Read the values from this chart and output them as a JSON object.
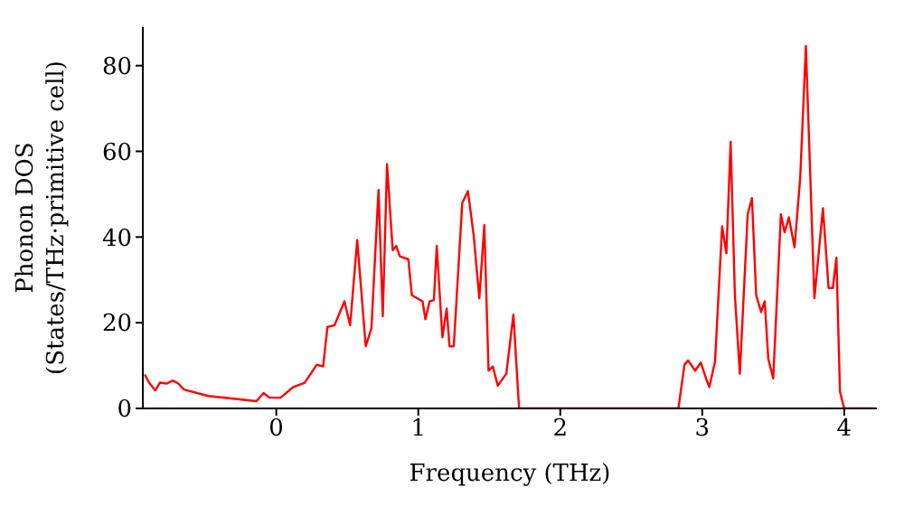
{
  "chart_data": {
    "type": "line",
    "xlabel": "Frequency (THz)",
    "ylabel": "Phonon DOS\n(States/THz·primitive cell)",
    "x": [
      -0.926,
      -0.896,
      -0.853,
      -0.82,
      -0.77,
      -0.73,
      -0.69,
      -0.65,
      -0.48,
      -0.14,
      -0.09,
      -0.047,
      0.03,
      0.12,
      0.2,
      0.285,
      0.33,
      0.36,
      0.41,
      0.48,
      0.52,
      0.57,
      0.63,
      0.67,
      0.72,
      0.75,
      0.78,
      0.82,
      0.845,
      0.87,
      0.93,
      0.955,
      1.03,
      1.05,
      1.08,
      1.11,
      1.13,
      1.17,
      1.2,
      1.22,
      1.25,
      1.31,
      1.35,
      1.39,
      1.43,
      1.465,
      1.495,
      1.525,
      1.56,
      1.62,
      1.67,
      1.71,
      2.832,
      2.875,
      2.9,
      2.95,
      2.99,
      3.03,
      3.05,
      3.09,
      3.14,
      3.17,
      3.2,
      3.23,
      3.265,
      3.32,
      3.35,
      3.38,
      3.415,
      3.44,
      3.465,
      3.5,
      3.554,
      3.58,
      3.61,
      3.65,
      3.69,
      3.73,
      3.79,
      3.85,
      3.89,
      3.92,
      3.945,
      3.97,
      4.0,
      4.21
    ],
    "series": [
      {
        "color": "#ff0000",
        "values": [
          7.9,
          6.0,
          4.2,
          6.0,
          5.8,
          6.5,
          5.8,
          4.4,
          2.9,
          1.7,
          3.6,
          2.5,
          2.5,
          5,
          6,
          10.2,
          9.8,
          19,
          19.4,
          25,
          19.4,
          39.3,
          14.5,
          18.7,
          51,
          21.5,
          57,
          36.9,
          37.9,
          35.5,
          34.8,
          26.4,
          25,
          20.8,
          25,
          25.3,
          37.9,
          16.6,
          23.3,
          14.5,
          14.5,
          48,
          50.7,
          40.4,
          25.7,
          42.8,
          8.8,
          9.8,
          5.3,
          8.1,
          21.9,
          0,
          0,
          10.2,
          11.2,
          8.8,
          10.7,
          6.7,
          5,
          10.9,
          42.5,
          36.2,
          62.2,
          26.4,
          8.1,
          45.3,
          49.1,
          26.4,
          22.5,
          25,
          11.6,
          7,
          45.3,
          41.1,
          44.6,
          37.6,
          53.8,
          84.6,
          25.7,
          46.7,
          28.1,
          28.1,
          35.2,
          3.9,
          0,
          0
        ]
      }
    ],
    "xlim": [
      -0.94,
      4.23
    ],
    "ylim": [
      0,
      89
    ],
    "xticks": [
      0,
      1,
      2,
      3,
      4
    ],
    "yticks": [
      0,
      20,
      40,
      60,
      80
    ],
    "grid": false,
    "legend": false,
    "marker": "none",
    "line_style": "solid"
  }
}
